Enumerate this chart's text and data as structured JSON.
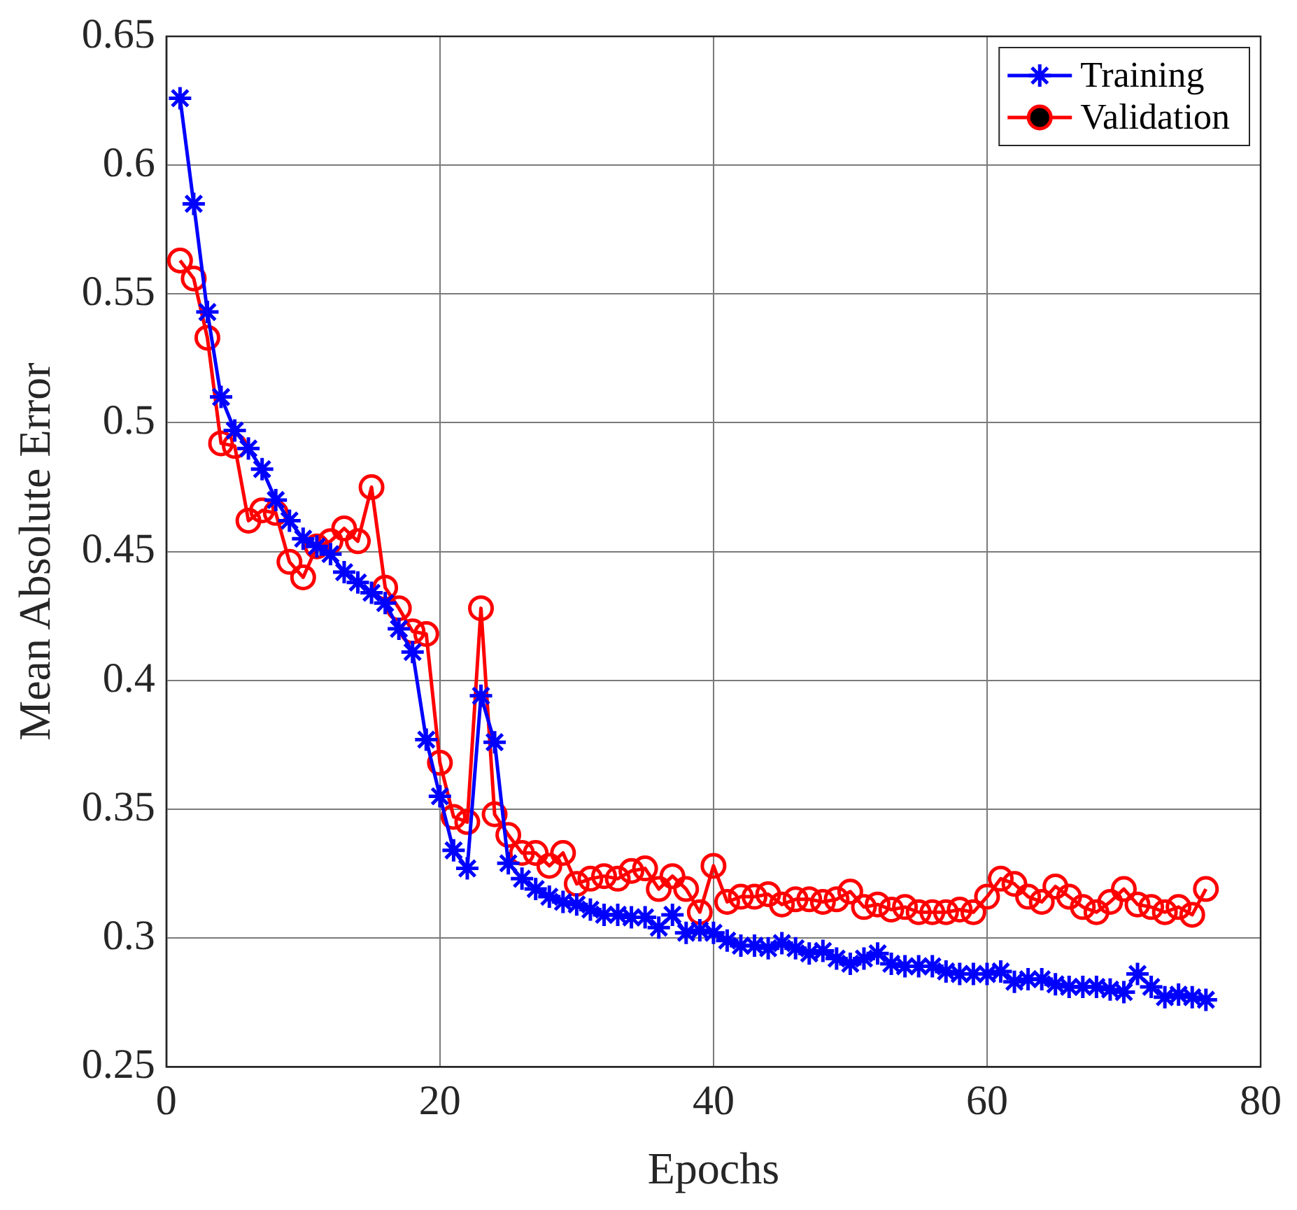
{
  "chart_data": {
    "type": "line",
    "xlabel": "Epochs",
    "ylabel": "Mean Absolute Error",
    "x": [
      1,
      2,
      3,
      4,
      5,
      6,
      7,
      8,
      9,
      10,
      11,
      12,
      13,
      14,
      15,
      16,
      17,
      18,
      19,
      20,
      21,
      22,
      23,
      24,
      25,
      26,
      27,
      28,
      29,
      30,
      31,
      32,
      33,
      34,
      35,
      36,
      37,
      38,
      39,
      40,
      41,
      42,
      43,
      44,
      45,
      46,
      47,
      48,
      49,
      50,
      51,
      52,
      53,
      54,
      55,
      56,
      57,
      58,
      59,
      60,
      61,
      62,
      63,
      64,
      65,
      66,
      67,
      68,
      69,
      70,
      71,
      72,
      73,
      74,
      75,
      76
    ],
    "series": [
      {
        "name": "Training",
        "color": "#0000ff",
        "marker": "cross",
        "values": [
          0.626,
          0.585,
          0.543,
          0.51,
          0.497,
          0.49,
          0.482,
          0.47,
          0.462,
          0.455,
          0.452,
          0.449,
          0.442,
          0.438,
          0.434,
          0.43,
          0.42,
          0.411,
          0.377,
          0.355,
          0.334,
          0.327,
          0.394,
          0.376,
          0.329,
          0.323,
          0.319,
          0.316,
          0.314,
          0.313,
          0.311,
          0.309,
          0.309,
          0.308,
          0.308,
          0.304,
          0.309,
          0.302,
          0.303,
          0.302,
          0.299,
          0.297,
          0.297,
          0.296,
          0.298,
          0.296,
          0.294,
          0.295,
          0.292,
          0.29,
          0.292,
          0.294,
          0.29,
          0.289,
          0.289,
          0.289,
          0.287,
          0.286,
          0.286,
          0.286,
          0.287,
          0.283,
          0.284,
          0.284,
          0.282,
          0.281,
          0.281,
          0.281,
          0.28,
          0.279,
          0.286,
          0.281,
          0.277,
          0.278,
          0.277,
          0.276
        ]
      },
      {
        "name": "Validation",
        "color": "#ff0000",
        "marker": "circle",
        "values": [
          0.563,
          0.556,
          0.533,
          0.492,
          0.491,
          0.462,
          0.466,
          0.465,
          0.446,
          0.44,
          0.452,
          0.454,
          0.459,
          0.454,
          0.475,
          0.436,
          0.428,
          0.419,
          0.418,
          0.368,
          0.347,
          0.345,
          0.428,
          0.348,
          0.34,
          0.333,
          0.333,
          0.328,
          0.333,
          0.321,
          0.323,
          0.324,
          0.323,
          0.326,
          0.327,
          0.319,
          0.324,
          0.319,
          0.31,
          0.328,
          0.314,
          0.316,
          0.316,
          0.317,
          0.313,
          0.315,
          0.315,
          0.314,
          0.315,
          0.318,
          0.312,
          0.313,
          0.311,
          0.312,
          0.31,
          0.31,
          0.31,
          0.311,
          0.31,
          0.316,
          0.323,
          0.321,
          0.316,
          0.314,
          0.32,
          0.316,
          0.312,
          0.31,
          0.314,
          0.319,
          0.313,
          0.312,
          0.31,
          0.312,
          0.309,
          0.319
        ]
      }
    ],
    "xlim": [
      0,
      80
    ],
    "xticks": [
      0,
      20,
      40,
      60,
      80
    ],
    "ylim": [
      0.25,
      0.65
    ],
    "yticks": [
      0.25,
      0.3,
      0.35,
      0.4,
      0.45,
      0.5,
      0.55,
      0.6,
      0.65
    ],
    "grid": true,
    "legend": "top right",
    "line_style": "solid"
  }
}
